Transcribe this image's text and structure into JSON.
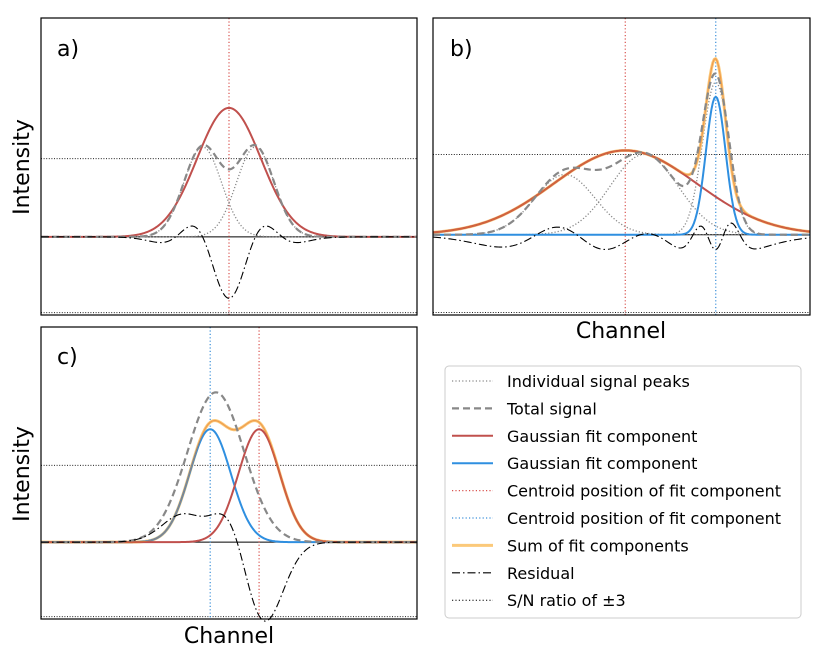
{
  "figure": {
    "ylabel": "Intensity",
    "xlabel": "Channel"
  },
  "chart_data": [
    {
      "type": "line",
      "panel": "a)",
      "xlabel": "",
      "ylabel": "Intensity",
      "xlim": [
        0,
        100
      ],
      "ylim": [
        -1.0,
        2.8
      ],
      "grid": false,
      "hlines": [
        1.0,
        -0.97
      ],
      "centroid_lines": [
        {
          "x": 50,
          "color": "#d9534f"
        }
      ],
      "peaks": [
        {
          "mu": 43,
          "sigma": 5,
          "amp": 1.15
        },
        {
          "mu": 57,
          "sigma": 5,
          "amp": 1.15
        }
      ],
      "fit_components": [
        {
          "mu": 50,
          "sigma": 8.5,
          "amp": 1.65,
          "color": "#c0504d"
        }
      ],
      "show_sum": false
    },
    {
      "type": "line",
      "panel": "b)",
      "xlabel": "Channel",
      "ylabel": "",
      "xlim": [
        0,
        100
      ],
      "ylim": [
        -1.0,
        2.7
      ],
      "grid": false,
      "hlines": [
        1.0,
        -0.97
      ],
      "centroid_lines": [
        {
          "x": 51,
          "color": "#d9534f"
        },
        {
          "x": 75,
          "color": "#3a8fd9"
        }
      ],
      "peaks": [
        {
          "mu": 35,
          "sigma": 8,
          "amp": 0.75
        },
        {
          "mu": 56,
          "sigma": 9,
          "amp": 1.0
        },
        {
          "mu": 75,
          "sigma": 3.5,
          "amp": 1.9
        }
      ],
      "fit_components": [
        {
          "mu": 51,
          "sigma": 19,
          "amp": 1.05,
          "color": "#c0504d"
        },
        {
          "mu": 75,
          "sigma": 2.6,
          "amp": 1.72,
          "color": "#2f8fe0"
        }
      ],
      "show_sum": true
    },
    {
      "type": "line",
      "panel": "c)",
      "xlabel": "Channel",
      "ylabel": "Intensity",
      "xlim": [
        0,
        100
      ],
      "ylim": [
        -1.0,
        2.8
      ],
      "grid": false,
      "hlines": [
        1.0,
        -0.97
      ],
      "centroid_lines": [
        {
          "x": 45,
          "color": "#3a8fd9"
        },
        {
          "x": 58,
          "color": "#d9534f"
        }
      ],
      "peaks": [
        {
          "mu": 46.5,
          "sigma": 7.5,
          "amp": 1.95
        }
      ],
      "fit_components": [
        {
          "mu": 45,
          "sigma": 5.5,
          "amp": 1.47,
          "color": "#2f8fe0"
        },
        {
          "mu": 58,
          "sigma": 5.5,
          "amp": 1.47,
          "color": "#c0504d"
        }
      ],
      "show_sum": true
    }
  ],
  "legend": [
    {
      "label": "Individual signal peaks",
      "color": "#888888",
      "style": "dotted",
      "width": 1.3
    },
    {
      "label": "Total signal",
      "color": "#888888",
      "style": "dashed",
      "width": 2.2
    },
    {
      "label": "Gaussian fit component",
      "color": "#c0504d",
      "style": "solid",
      "width": 2
    },
    {
      "label": "Gaussian fit component",
      "color": "#2f8fe0",
      "style": "solid",
      "width": 2
    },
    {
      "label": "Centroid position of fit component",
      "color": "#d9534f",
      "style": "dotted",
      "width": 1.3
    },
    {
      "label": "Centroid position of fit component",
      "color": "#3a8fd9",
      "style": "dotted",
      "width": 1.3
    },
    {
      "label": "Sum of fit components",
      "color": "#fbc97a",
      "style": "solid",
      "width": 3
    },
    {
      "label": "Residual",
      "color": "#000000",
      "style": "dashdot",
      "width": 1.2
    },
    {
      "label": "S/N ratio of ±3",
      "color": "#000000",
      "style": "dotted",
      "width": 1
    }
  ]
}
